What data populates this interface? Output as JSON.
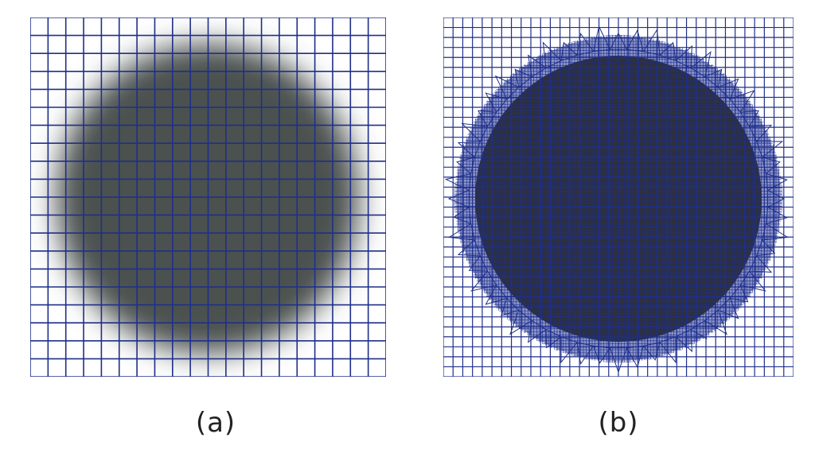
{
  "panels": [
    {
      "id": "a",
      "label": "(a)",
      "grid_cells": 20,
      "grid_color": "#1f2f8a",
      "blob_color": "#4b5150",
      "edge": "soft-blurred"
    },
    {
      "id": "b",
      "label": "(b)",
      "grid_cells": 36,
      "refined_cells": 120,
      "grid_color": "#1f2f8a",
      "blob_color": "#2f3034",
      "edge": "adaptively-refined"
    }
  ]
}
